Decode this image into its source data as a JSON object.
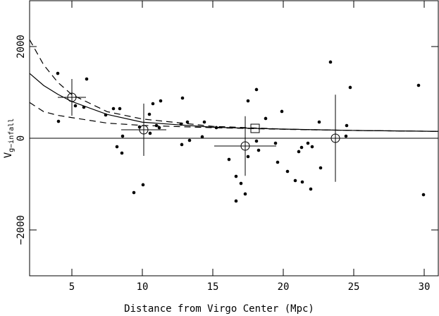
{
  "chart_data": {
    "type": "scatter",
    "xlabel": "Distance from Virgo Center (Mpc)",
    "ylabel_main": "V",
    "ylabel_sub": "g−infall",
    "xlim": [
      2,
      31
    ],
    "ylim": [
      -3000,
      3000
    ],
    "xticks": [
      5,
      10,
      15,
      20,
      25,
      30
    ],
    "yticks": [
      {
        "value": -2000,
        "label": "−2000"
      },
      0,
      2000
    ],
    "hline": 0,
    "points": {
      "x": [
        4.0,
        4.05,
        5.25,
        5.85,
        6.05,
        7.4,
        7.95,
        8.4,
        8.2,
        8.55,
        8.6,
        9.4,
        10.05,
        9.8,
        10.5,
        10.75,
        10.55,
        11.0,
        11.3,
        11.2,
        12.75,
        12.85,
        12.8,
        13.2,
        13.35,
        14.4,
        14.25,
        15.25,
        16.15,
        16.65,
        16.65,
        17.0,
        17.3,
        17.5,
        17.5,
        18.1,
        18.1,
        18.25,
        18.75,
        19.45,
        19.6,
        19.9,
        20.3,
        20.85,
        21.1,
        21.35,
        21.3,
        21.75,
        21.95,
        22.05,
        22.55,
        22.65,
        23.35,
        24.45,
        24.5,
        24.75,
        29.6,
        29.95
      ],
      "y": [
        1415,
        369,
        708,
        677,
        1292,
        508,
        646,
        646,
        -185,
        -323,
        46,
        -1185,
        -1015,
        246,
        523,
        754,
        108,
        277,
        815,
        231,
        308,
        877,
        -138,
        354,
        -46,
        354,
        31,
        231,
        -462,
        -831,
        -1369,
        -985,
        -1215,
        815,
        -400,
        1062,
        -62,
        -262,
        431,
        -108,
        -523,
        585,
        -723,
        -923,
        -292,
        -954,
        -200,
        -108,
        -1108,
        -185,
        354,
        -646,
        1662,
        46,
        277,
        1108,
        1154,
        -1231
      ]
    },
    "binned": {
      "x": [
        5.0,
        10.1,
        17.3,
        23.7
      ],
      "y": [
        892,
        185,
        -169,
        0
      ],
      "xerr": [
        1.0,
        1.6,
        2.2,
        2.8
      ],
      "yerr": [
        400,
        570,
        650,
        950
      ]
    },
    "square": {
      "x": [
        18.0
      ],
      "y": [
        215
      ]
    },
    "curves": [
      {
        "style": "solid",
        "x": [
          2,
          3,
          4,
          5,
          7.5,
          10,
          15,
          20,
          25,
          31
        ],
        "y": [
          1415,
          1150,
          960,
          800,
          520,
          350,
          240,
          200,
          170,
          150
        ]
      },
      {
        "style": "dashed",
        "x": [
          2,
          3,
          4,
          5,
          7.5,
          10,
          15,
          20,
          25,
          31
        ],
        "y": [
          2150,
          1600,
          1220,
          950,
          580,
          420,
          260,
          200,
          170,
          150
        ]
      },
      {
        "style": "dashed",
        "x": [
          2,
          3,
          4,
          5,
          7.5,
          10,
          15,
          20,
          25,
          31
        ],
        "y": [
          780,
          580,
          500,
          450,
          330,
          280,
          230,
          195,
          170,
          150
        ]
      }
    ]
  }
}
